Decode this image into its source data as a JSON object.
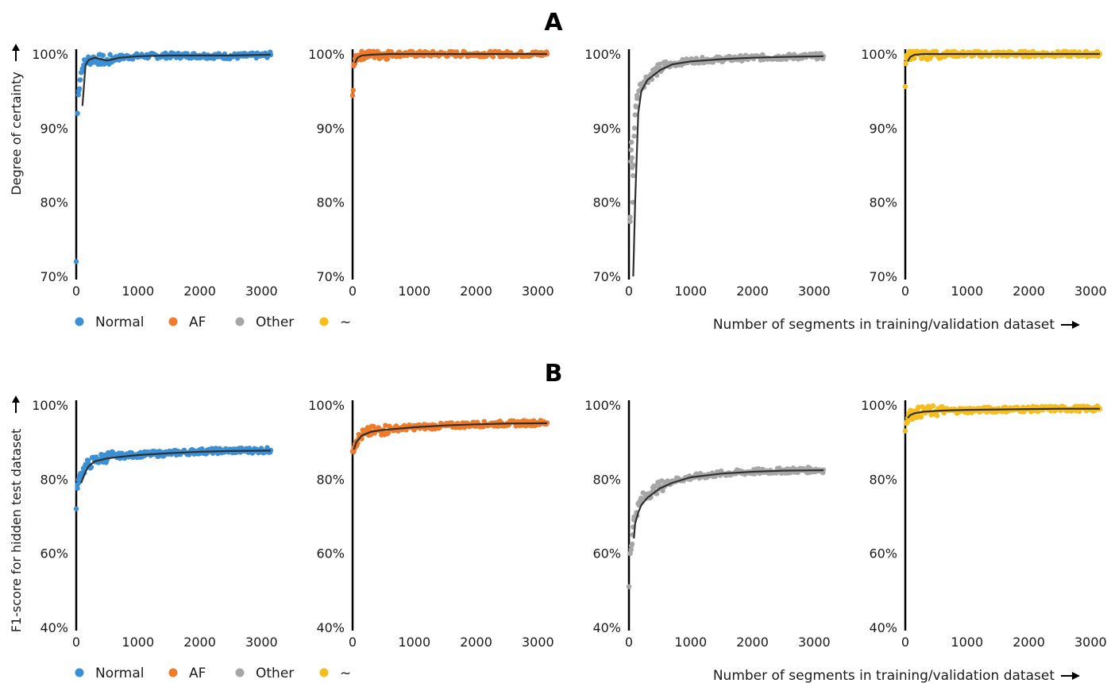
{
  "rows": [
    {
      "letter": "A",
      "ylabel": "Degree of certainty",
      "xlabel": "Number of segments in training/validation dataset",
      "legend": [
        "Normal",
        "AF",
        "Other",
        "~"
      ]
    },
    {
      "letter": "B",
      "ylabel": "F1-score for hidden test dataset",
      "xlabel": "Number of segments in training/validation dataset",
      "legend": [
        "Normal",
        "AF",
        "Other",
        "~"
      ]
    }
  ],
  "colors": {
    "Normal": "#3b8fd6",
    "AF": "#ee7a2a",
    "Other": "#a6a6a6",
    "~": "#f7bd1c",
    "trend": "#2f2f2f"
  },
  "chart_data": [
    {
      "type": "scatter",
      "series": [
        {
          "name": "Normal",
          "x": [
            0,
            20,
            40,
            60,
            80,
            120,
            160,
            200,
            250,
            300,
            400,
            500,
            600,
            800,
            1000,
            1500,
            2000,
            2500,
            3000,
            3150
          ],
          "y": [
            72,
            92,
            95,
            96.5,
            97.5,
            98.5,
            99,
            99.2,
            99.3,
            99.4,
            99.2,
            99.0,
            99.4,
            99.6,
            99.7,
            99.8,
            99.8,
            99.7,
            99.8,
            99.9
          ]
        }
      ],
      "trend": {
        "x": [
          100,
          150,
          200,
          300,
          400,
          500,
          700,
          1000,
          1500,
          2000,
          2500,
          3150
        ],
        "y": [
          93,
          98.5,
          99.2,
          99.5,
          99.3,
          99.1,
          99.5,
          99.7,
          99.8,
          99.8,
          99.8,
          99.9
        ]
      },
      "xticks": [
        0,
        1000,
        2000,
        3000
      ],
      "yticks": [
        "70%",
        "80%",
        "90%",
        "100%"
      ],
      "ylim": [
        70,
        100
      ],
      "xlim": [
        0,
        3150
      ]
    },
    {
      "type": "scatter",
      "series": [
        {
          "name": "AF",
          "x": [
            0,
            10,
            20,
            40,
            60,
            100,
            150,
            200,
            300,
            500,
            1000,
            2000,
            3000,
            3150
          ],
          "y": [
            94.4,
            95.1,
            98.4,
            99.4,
            99.6,
            99.8,
            100,
            100,
            100,
            100,
            100,
            100,
            100,
            100
          ]
        }
      ],
      "trend": {
        "x": [
          40,
          80,
          150,
          300,
          600,
          1000,
          2000,
          3150
        ],
        "y": [
          98.8,
          99.5,
          99.8,
          99.9,
          100,
          100,
          100,
          100
        ]
      },
      "xticks": [
        0,
        1000,
        2000,
        3000
      ],
      "yticks": [
        "70%",
        "80%",
        "90%",
        "100%"
      ],
      "ylim": [
        70,
        100
      ],
      "xlim": [
        0,
        3150
      ]
    },
    {
      "type": "scatter",
      "series": [
        {
          "name": "Other",
          "x": [
            20,
            30,
            40,
            50,
            60,
            70,
            90,
            110,
            130,
            160,
            200,
            250,
            300,
            400,
            500,
            600,
            800,
            1000,
            1500,
            2000,
            2500,
            3000,
            3150
          ],
          "y": [
            78,
            85.5,
            88.1,
            86,
            80,
            85,
            90,
            93,
            94,
            95,
            96,
            96.3,
            96.8,
            97.5,
            98,
            98.4,
            98.8,
            99.1,
            99.3,
            99.5,
            99.6,
            99.7,
            99.7
          ]
        }
      ],
      "trend": {
        "x": [
          70,
          100,
          150,
          200,
          300,
          500,
          700,
          1000,
          1500,
          2000,
          2500,
          3150
        ],
        "y": [
          70,
          80,
          92,
          95,
          96.5,
          97.8,
          98.6,
          99.0,
          99.3,
          99.5,
          99.6,
          99.7
        ]
      },
      "xticks": [
        0,
        1000,
        2000,
        3000
      ],
      "yticks": [
        "70%",
        "80%",
        "90%",
        "100%"
      ],
      "ylim": [
        70,
        100
      ],
      "xlim": [
        0,
        3150
      ]
    },
    {
      "type": "scatter",
      "series": [
        {
          "name": "~",
          "x": [
            0,
            10,
            20,
            40,
            60,
            100,
            150,
            200,
            300,
            500,
            1000,
            2000,
            3000,
            3150
          ],
          "y": [
            95.6,
            98.7,
            99.4,
            99.6,
            99.8,
            99.9,
            100,
            100,
            100,
            100,
            100,
            100,
            100,
            100
          ]
        }
      ],
      "trend": {
        "x": [
          40,
          80,
          150,
          300,
          600,
          1000,
          2000,
          3150
        ],
        "y": [
          99.0,
          99.6,
          99.9,
          100,
          100,
          100,
          100,
          100
        ]
      },
      "xticks": [
        0,
        1000,
        2000,
        3000
      ],
      "yticks": [
        "70%",
        "80%",
        "90%",
        "100%"
      ],
      "ylim": [
        70,
        100
      ],
      "xlim": [
        0,
        3150
      ]
    },
    {
      "type": "scatter",
      "series": [
        {
          "name": "Normal",
          "x": [
            0,
            20,
            40,
            60,
            80,
            120,
            160,
            200,
            300,
            400,
            500,
            700,
            1000,
            1500,
            2000,
            2500,
            3000,
            3150
          ],
          "y": [
            72,
            77.5,
            80,
            81,
            81.5,
            82.5,
            83.5,
            84,
            85,
            85.5,
            86,
            86.3,
            86.6,
            87,
            87.5,
            87.7,
            87.8,
            87.8
          ]
        }
      ],
      "trend": {
        "x": [
          80,
          150,
          200,
          300,
          500,
          700,
          1000,
          1500,
          2000,
          2500,
          3150
        ],
        "y": [
          79,
          82,
          83.5,
          84.8,
          85.6,
          86.0,
          86.5,
          87.0,
          87.4,
          87.6,
          87.7
        ]
      },
      "xticks": [
        0,
        1000,
        2000,
        3000
      ],
      "yticks": [
        "40%",
        "60%",
        "80%",
        "100%"
      ],
      "ylim": [
        40,
        100
      ],
      "xlim": [
        0,
        3150
      ]
    },
    {
      "type": "scatter",
      "series": [
        {
          "name": "AF",
          "x": [
            0,
            20,
            40,
            60,
            100,
            150,
            200,
            300,
            500,
            700,
            1000,
            1500,
            2000,
            2500,
            3000,
            3150
          ],
          "y": [
            87.5,
            88.5,
            89.5,
            90.2,
            91,
            91.8,
            92.3,
            92.8,
            93.3,
            93.7,
            94,
            94.4,
            94.8,
            95,
            95.2,
            95.2
          ]
        }
      ],
      "trend": {
        "x": [
          20,
          60,
          150,
          300,
          500,
          1000,
          1500,
          2000,
          2500,
          3150
        ],
        "y": [
          88,
          90,
          91.8,
          92.8,
          93.3,
          94.0,
          94.5,
          94.8,
          95.0,
          95.1
        ]
      },
      "xticks": [
        0,
        1000,
        2000,
        3000
      ],
      "yticks": [
        "40%",
        "60%",
        "80%",
        "100%"
      ],
      "ylim": [
        40,
        100
      ],
      "xlim": [
        0,
        3150
      ]
    },
    {
      "type": "scatter",
      "series": [
        {
          "name": "Other",
          "x": [
            0,
            20,
            40,
            60,
            80,
            120,
            160,
            200,
            300,
            400,
            500,
            700,
            1000,
            1500,
            2000,
            2500,
            3000,
            3150
          ],
          "y": [
            51,
            60,
            62,
            65,
            69,
            71,
            73,
            74.5,
            76,
            77,
            78,
            79.5,
            80.5,
            81.5,
            82,
            82.3,
            82.5,
            82.5
          ]
        }
      ],
      "trend": {
        "x": [
          80,
          100,
          150,
          200,
          300,
          500,
          700,
          1000,
          1500,
          2000,
          2500,
          3150
        ],
        "y": [
          64,
          68,
          71,
          73,
          75,
          77.5,
          79,
          80.5,
          81.5,
          82.0,
          82.3,
          82.4
        ]
      },
      "xticks": [
        0,
        1000,
        2000,
        3000
      ],
      "yticks": [
        "40%",
        "60%",
        "80%",
        "100%"
      ],
      "ylim": [
        40,
        100
      ],
      "xlim": [
        0,
        3150
      ]
    },
    {
      "type": "scatter",
      "series": [
        {
          "name": "~",
          "x": [
            0,
            20,
            40,
            60,
            100,
            150,
            200,
            300,
            500,
            1000,
            1500,
            2000,
            2500,
            3000,
            3150
          ],
          "y": [
            93,
            95,
            96.5,
            97,
            97.5,
            97.8,
            98,
            98.2,
            98.4,
            98.6,
            98.8,
            98.9,
            99,
            99,
            99
          ]
        }
      ],
      "trend": {
        "x": [
          40,
          80,
          150,
          300,
          600,
          1000,
          1500,
          2000,
          2500,
          3150
        ],
        "y": [
          96.5,
          97.3,
          97.8,
          98.2,
          98.5,
          98.7,
          98.8,
          98.9,
          99.0,
          99.0
        ]
      },
      "xticks": [
        0,
        1000,
        2000,
        3000
      ],
      "yticks": [
        "40%",
        "60%",
        "80%",
        "100%"
      ],
      "ylim": [
        40,
        100
      ],
      "xlim": [
        0,
        3150
      ]
    }
  ]
}
